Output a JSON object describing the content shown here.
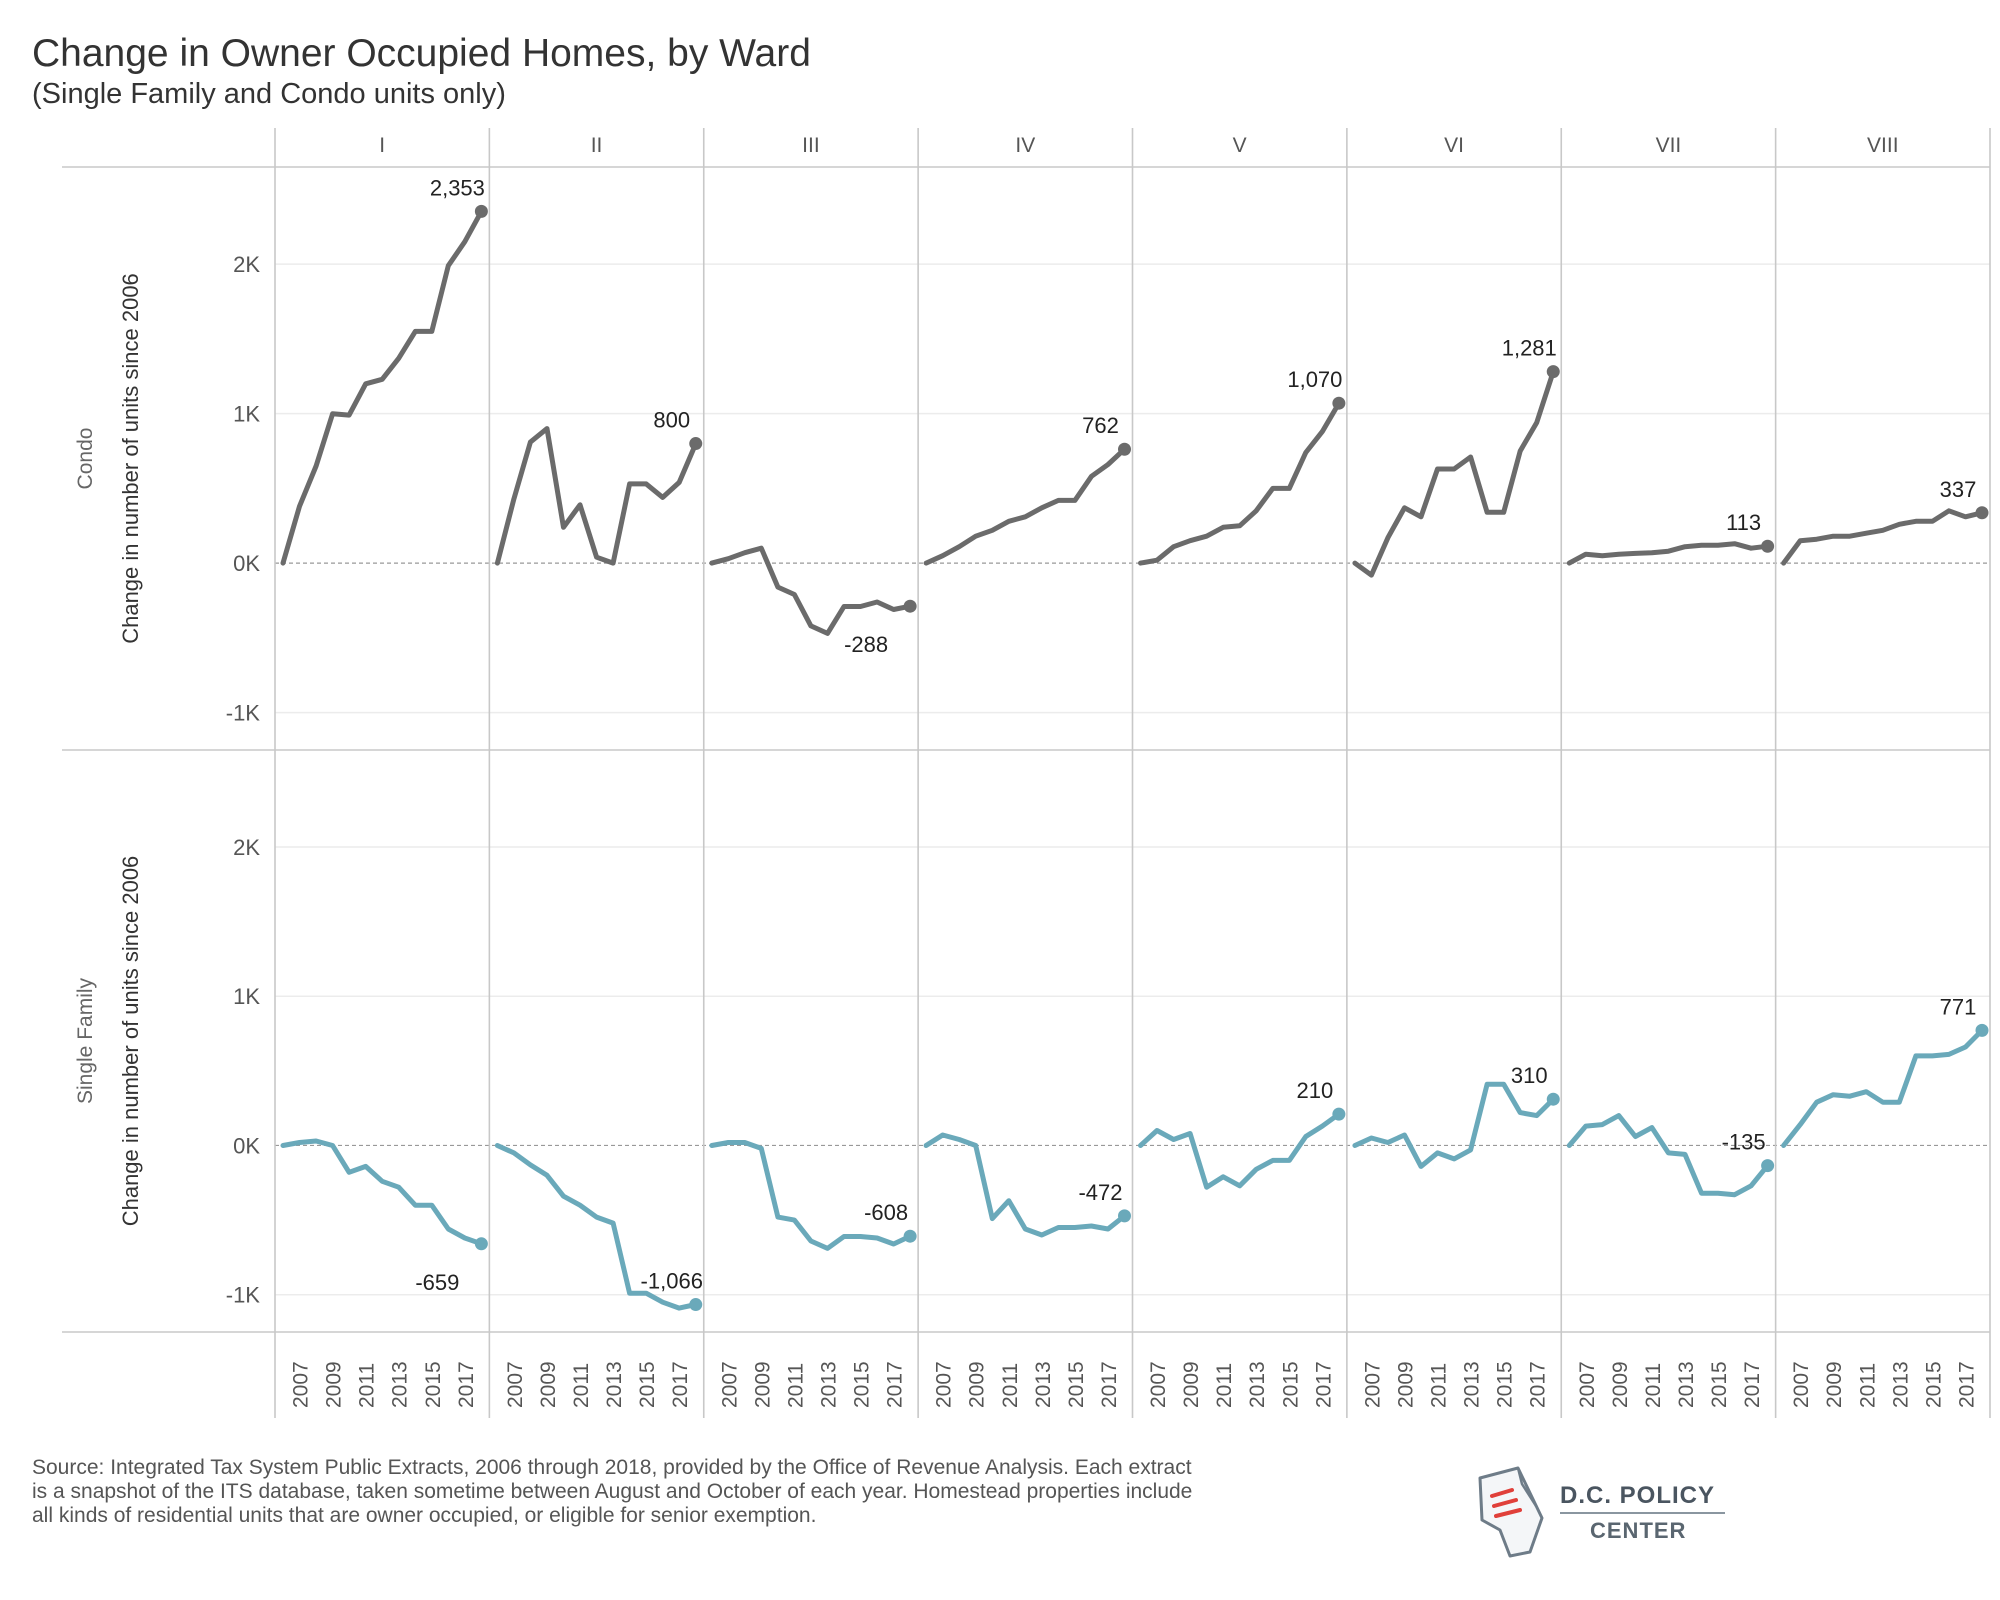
{
  "title": "Change in Owner Occupied Homes, by Ward",
  "subtitle": "(Single Family and Condo units only)",
  "source": "Source: Integrated Tax System Public Extracts, 2006 through 2018, provided by the Office of Revenue Analysis. Each extract is a snapshot of the ITS database, taken sometime between August and October of each year. Homestead properties include all kinds of residential units that are owner occupied, or eligible for senior exemption.",
  "logo": {
    "line1": "D.C. POLICY",
    "line2": "CENTER",
    "icon": "dc-map-document-icon"
  },
  "colors": {
    "condo": "#6b6b6b",
    "single_family": "#6aa9ba",
    "grid": "#ececec",
    "zero_line": "#999999",
    "divider": "#c8c8c8"
  },
  "chart_data": {
    "type": "line",
    "title": "Change in Owner Occupied Homes, by Ward",
    "subtitle": "(Single Family and Condo units only)",
    "ylabel": "Change in number of units since 2006",
    "ylim": [
      -1250,
      2650
    ],
    "y_ticks": [
      2000,
      1000,
      0,
      -1000
    ],
    "y_tick_labels": [
      "2K",
      "1K",
      "0K",
      "-1K"
    ],
    "x_tick_labels": [
      "2007",
      "2009",
      "2011",
      "2013",
      "2015",
      "2017"
    ],
    "x_range": [
      2006,
      2018
    ],
    "grid": true,
    "wards": [
      "I",
      "II",
      "III",
      "IV",
      "V",
      "VI",
      "VII",
      "VIII"
    ],
    "rows": [
      {
        "name": "Condo",
        "series": [
          {
            "ward": "I",
            "label": "2,353",
            "values": [
              [
                2006,
                0
              ],
              [
                2007,
                380
              ],
              [
                2008,
                650
              ],
              [
                2009,
                1000
              ],
              [
                2010,
                990
              ],
              [
                2011,
                1200
              ],
              [
                2012,
                1230
              ],
              [
                2013,
                1370
              ],
              [
                2014,
                1550
              ],
              [
                2015,
                1550
              ],
              [
                2016,
                1990
              ],
              [
                2017,
                2150
              ],
              [
                2018,
                2353
              ]
            ]
          },
          {
            "ward": "II",
            "label": "800",
            "values": [
              [
                2006,
                0
              ],
              [
                2007,
                430
              ],
              [
                2008,
                810
              ],
              [
                2009,
                900
              ],
              [
                2010,
                240
              ],
              [
                2011,
                390
              ],
              [
                2012,
                40
              ],
              [
                2013,
                0
              ],
              [
                2014,
                530
              ],
              [
                2015,
                530
              ],
              [
                2016,
                440
              ],
              [
                2017,
                540
              ],
              [
                2018,
                800
              ]
            ]
          },
          {
            "ward": "III",
            "label": "-288",
            "values": [
              [
                2006,
                0
              ],
              [
                2007,
                30
              ],
              [
                2008,
                70
              ],
              [
                2009,
                100
              ],
              [
                2010,
                -160
              ],
              [
                2011,
                -210
              ],
              [
                2012,
                -420
              ],
              [
                2013,
                -470
              ],
              [
                2014,
                -290
              ],
              [
                2015,
                -290
              ],
              [
                2016,
                -260
              ],
              [
                2017,
                -310
              ],
              [
                2018,
                -288
              ]
            ]
          },
          {
            "ward": "IV",
            "label": "762",
            "values": [
              [
                2006,
                0
              ],
              [
                2007,
                50
              ],
              [
                2008,
                110
              ],
              [
                2009,
                180
              ],
              [
                2010,
                220
              ],
              [
                2011,
                280
              ],
              [
                2012,
                310
              ],
              [
                2013,
                370
              ],
              [
                2014,
                420
              ],
              [
                2015,
                420
              ],
              [
                2016,
                580
              ],
              [
                2017,
                660
              ],
              [
                2018,
                762
              ]
            ]
          },
          {
            "ward": "V",
            "label": "1,070",
            "values": [
              [
                2006,
                0
              ],
              [
                2007,
                20
              ],
              [
                2008,
                110
              ],
              [
                2009,
                150
              ],
              [
                2010,
                180
              ],
              [
                2011,
                240
              ],
              [
                2012,
                250
              ],
              [
                2013,
                350
              ],
              [
                2014,
                500
              ],
              [
                2015,
                500
              ],
              [
                2016,
                740
              ],
              [
                2017,
                880
              ],
              [
                2018,
                1070
              ]
            ]
          },
          {
            "ward": "VI",
            "label": "1,281",
            "values": [
              [
                2006,
                0
              ],
              [
                2007,
                -80
              ],
              [
                2008,
                170
              ],
              [
                2009,
                370
              ],
              [
                2010,
                310
              ],
              [
                2011,
                630
              ],
              [
                2012,
                630
              ],
              [
                2013,
                710
              ],
              [
                2014,
                340
              ],
              [
                2015,
                340
              ],
              [
                2016,
                750
              ],
              [
                2017,
                940
              ],
              [
                2018,
                1281
              ]
            ]
          },
          {
            "ward": "VII",
            "label": "113",
            "values": [
              [
                2006,
                0
              ],
              [
                2007,
                60
              ],
              [
                2008,
                50
              ],
              [
                2009,
                60
              ],
              [
                2010,
                65
              ],
              [
                2011,
                70
              ],
              [
                2012,
                80
              ],
              [
                2013,
                110
              ],
              [
                2014,
                120
              ],
              [
                2015,
                120
              ],
              [
                2016,
                130
              ],
              [
                2017,
                100
              ],
              [
                2018,
                113
              ]
            ]
          },
          {
            "ward": "VIII",
            "label": "337",
            "values": [
              [
                2006,
                0
              ],
              [
                2007,
                150
              ],
              [
                2008,
                160
              ],
              [
                2009,
                180
              ],
              [
                2010,
                180
              ],
              [
                2011,
                200
              ],
              [
                2012,
                220
              ],
              [
                2013,
                260
              ],
              [
                2014,
                280
              ],
              [
                2015,
                280
              ],
              [
                2016,
                350
              ],
              [
                2017,
                310
              ],
              [
                2018,
                337
              ]
            ]
          }
        ]
      },
      {
        "name": "Single Family",
        "series": [
          {
            "ward": "I",
            "label": "-659",
            "values": [
              [
                2006,
                0
              ],
              [
                2007,
                20
              ],
              [
                2008,
                30
              ],
              [
                2009,
                0
              ],
              [
                2010,
                -180
              ],
              [
                2011,
                -140
              ],
              [
                2012,
                -240
              ],
              [
                2013,
                -280
              ],
              [
                2014,
                -400
              ],
              [
                2015,
                -400
              ],
              [
                2016,
                -560
              ],
              [
                2017,
                -620
              ],
              [
                2018,
                -659
              ]
            ]
          },
          {
            "ward": "II",
            "label": "-1,066",
            "values": [
              [
                2006,
                0
              ],
              [
                2007,
                -50
              ],
              [
                2008,
                -130
              ],
              [
                2009,
                -200
              ],
              [
                2010,
                -340
              ],
              [
                2011,
                -400
              ],
              [
                2012,
                -480
              ],
              [
                2013,
                -520
              ],
              [
                2014,
                -990
              ],
              [
                2015,
                -990
              ],
              [
                2016,
                -1050
              ],
              [
                2017,
                -1090
              ],
              [
                2018,
                -1066
              ]
            ]
          },
          {
            "ward": "III",
            "label": "-608",
            "values": [
              [
                2006,
                0
              ],
              [
                2007,
                20
              ],
              [
                2008,
                20
              ],
              [
                2009,
                -20
              ],
              [
                2010,
                -480
              ],
              [
                2011,
                -500
              ],
              [
                2012,
                -640
              ],
              [
                2013,
                -690
              ],
              [
                2014,
                -610
              ],
              [
                2015,
                -610
              ],
              [
                2016,
                -620
              ],
              [
                2017,
                -660
              ],
              [
                2018,
                -608
              ]
            ]
          },
          {
            "ward": "IV",
            "label": "-472",
            "values": [
              [
                2006,
                0
              ],
              [
                2007,
                70
              ],
              [
                2008,
                40
              ],
              [
                2009,
                0
              ],
              [
                2010,
                -490
              ],
              [
                2011,
                -370
              ],
              [
                2012,
                -560
              ],
              [
                2013,
                -600
              ],
              [
                2014,
                -550
              ],
              [
                2015,
                -550
              ],
              [
                2016,
                -540
              ],
              [
                2017,
                -560
              ],
              [
                2018,
                -472
              ]
            ]
          },
          {
            "ward": "V",
            "label": "210",
            "values": [
              [
                2006,
                0
              ],
              [
                2007,
                100
              ],
              [
                2008,
                40
              ],
              [
                2009,
                80
              ],
              [
                2010,
                -280
              ],
              [
                2011,
                -210
              ],
              [
                2012,
                -270
              ],
              [
                2013,
                -160
              ],
              [
                2014,
                -100
              ],
              [
                2015,
                -100
              ],
              [
                2016,
                60
              ],
              [
                2017,
                130
              ],
              [
                2018,
                210
              ]
            ]
          },
          {
            "ward": "VI",
            "label": "310",
            "values": [
              [
                2006,
                0
              ],
              [
                2007,
                50
              ],
              [
                2008,
                20
              ],
              [
                2009,
                70
              ],
              [
                2010,
                -140
              ],
              [
                2011,
                -50
              ],
              [
                2012,
                -90
              ],
              [
                2013,
                -30
              ],
              [
                2014,
                410
              ],
              [
                2015,
                410
              ],
              [
                2016,
                220
              ],
              [
                2017,
                200
              ],
              [
                2018,
                310
              ]
            ]
          },
          {
            "ward": "VII",
            "label": "-135",
            "values": [
              [
                2006,
                0
              ],
              [
                2007,
                130
              ],
              [
                2008,
                140
              ],
              [
                2009,
                200
              ],
              [
                2010,
                60
              ],
              [
                2011,
                120
              ],
              [
                2012,
                -50
              ],
              [
                2013,
                -60
              ],
              [
                2014,
                -320
              ],
              [
                2015,
                -320
              ],
              [
                2016,
                -330
              ],
              [
                2017,
                -270
              ],
              [
                2018,
                -135
              ]
            ]
          },
          {
            "ward": "VIII",
            "label": "771",
            "values": [
              [
                2006,
                0
              ],
              [
                2007,
                140
              ],
              [
                2008,
                290
              ],
              [
                2009,
                340
              ],
              [
                2010,
                330
              ],
              [
                2011,
                360
              ],
              [
                2012,
                290
              ],
              [
                2013,
                290
              ],
              [
                2014,
                600
              ],
              [
                2015,
                600
              ],
              [
                2016,
                610
              ],
              [
                2017,
                660
              ],
              [
                2018,
                771
              ]
            ]
          }
        ]
      }
    ]
  }
}
